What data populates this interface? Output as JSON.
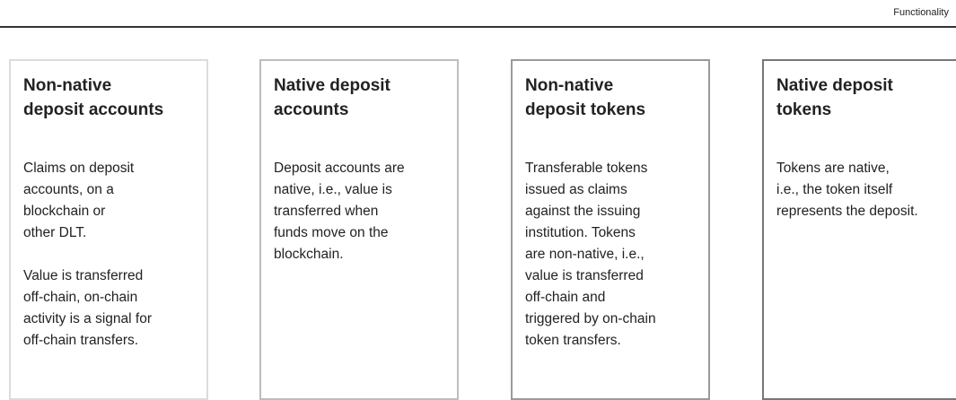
{
  "header": {
    "title": "Functionality"
  },
  "boxes": [
    {
      "title": [
        "Non-native",
        "deposit accounts"
      ],
      "paragraphs": [
        [
          "Claims on deposit",
          "accounts, on a",
          "blockchain or",
          "other DLT."
        ],
        [
          "Value is transferred",
          "off-chain, on-chain",
          "activity is a signal for",
          "off-chain transfers."
        ]
      ]
    },
    {
      "title": [
        "Native deposit",
        "accounts"
      ],
      "paragraphs": [
        [
          "Deposit accounts are",
          "native, i.e., value is",
          "transferred when",
          "funds move on the",
          "blockchain."
        ]
      ]
    },
    {
      "title": [
        "Non-native",
        "deposit tokens"
      ],
      "paragraphs": [
        [
          "Transferable tokens",
          "issued as claims",
          "against the issuing",
          "institution. Tokens",
          "are non-native, i.e.,",
          "value is transferred",
          "off-chain and",
          "triggered by on-chain",
          "token transfers."
        ]
      ]
    },
    {
      "title": [
        "Native deposit",
        "tokens"
      ],
      "paragraphs": [
        [
          "Tokens are native,",
          "i.e., the token itself",
          "represents the deposit."
        ]
      ]
    }
  ]
}
